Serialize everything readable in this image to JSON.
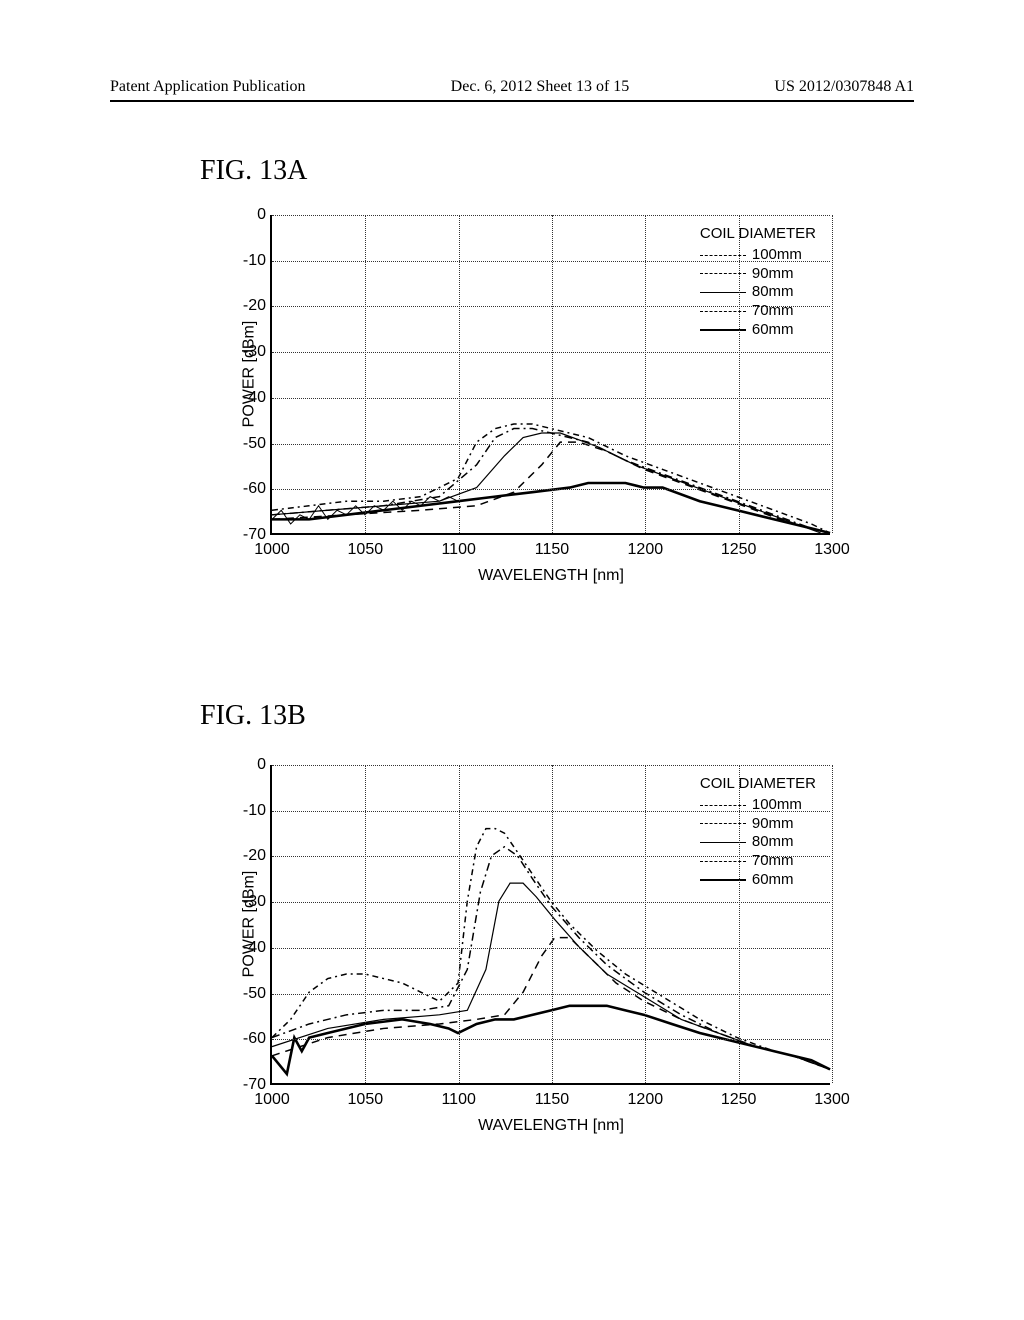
{
  "header": {
    "left": "Patent Application Publication",
    "center": "Dec. 6, 2012   Sheet 13 of 15",
    "right": "US 2012/0307848 A1"
  },
  "label_a": "FIG. 13A",
  "label_b": "FIG. 13B",
  "chart": {
    "type": "line",
    "xlabel": "WAVELENGTH [nm]",
    "ylabel": "POWER [dBm]",
    "xlim": [
      1000,
      1300
    ],
    "ylim": [
      -70,
      0
    ],
    "xticks": [
      1000,
      1050,
      1100,
      1150,
      1200,
      1250,
      1300
    ],
    "yticks": [
      0,
      -10,
      -20,
      -30,
      -40,
      -50,
      -60,
      -70
    ],
    "grid_color": "#333333",
    "axis_color": "#000000",
    "background_color": "#ffffff",
    "legend_title": "COIL DIAMETER",
    "legend": [
      {
        "label": "100mm",
        "dash": "6 4 2 4",
        "weight": 1.5
      },
      {
        "label": "90mm",
        "dash": "8 4 2 4",
        "weight": 1.5
      },
      {
        "label": "80mm",
        "dash": "none",
        "weight": 1.2
      },
      {
        "label": "70mm",
        "dash": "8 6",
        "weight": 1.5
      },
      {
        "label": "60mm",
        "dash": "none",
        "weight": 2.6
      }
    ],
    "label_fontsize": 16,
    "tick_fontsize": 16,
    "legend_fontsize": 15,
    "series_a": {
      "s100": [
        [
          1000,
          -65
        ],
        [
          1020,
          -64
        ],
        [
          1040,
          -63
        ],
        [
          1060,
          -63
        ],
        [
          1080,
          -62
        ],
        [
          1100,
          -58
        ],
        [
          1110,
          -50
        ],
        [
          1120,
          -47
        ],
        [
          1130,
          -46
        ],
        [
          1140,
          -46
        ],
        [
          1150,
          -47
        ],
        [
          1170,
          -49
        ],
        [
          1190,
          -53
        ],
        [
          1210,
          -56
        ],
        [
          1230,
          -59
        ],
        [
          1250,
          -62
        ],
        [
          1270,
          -65
        ],
        [
          1290,
          -68
        ],
        [
          1300,
          -70
        ]
      ],
      "s90": [
        [
          1000,
          -66
        ],
        [
          1030,
          -65
        ],
        [
          1060,
          -64
        ],
        [
          1090,
          -62
        ],
        [
          1110,
          -55
        ],
        [
          1120,
          -49
        ],
        [
          1130,
          -47
        ],
        [
          1140,
          -47
        ],
        [
          1150,
          -48
        ],
        [
          1170,
          -50
        ],
        [
          1190,
          -54
        ],
        [
          1210,
          -57
        ],
        [
          1230,
          -60
        ],
        [
          1250,
          -63
        ],
        [
          1270,
          -66
        ],
        [
          1290,
          -69
        ],
        [
          1300,
          -70
        ]
      ],
      "s80": [
        [
          1000,
          -66
        ],
        [
          1030,
          -65
        ],
        [
          1060,
          -64
        ],
        [
          1090,
          -63
        ],
        [
          1110,
          -60
        ],
        [
          1125,
          -53
        ],
        [
          1135,
          -49
        ],
        [
          1145,
          -48
        ],
        [
          1155,
          -48
        ],
        [
          1175,
          -51
        ],
        [
          1195,
          -55
        ],
        [
          1215,
          -58
        ],
        [
          1235,
          -61
        ],
        [
          1255,
          -64
        ],
        [
          1275,
          -67
        ],
        [
          1295,
          -70
        ]
      ],
      "s70": [
        [
          1000,
          -67
        ],
        [
          1040,
          -66
        ],
        [
          1080,
          -65
        ],
        [
          1110,
          -64
        ],
        [
          1130,
          -61
        ],
        [
          1145,
          -55
        ],
        [
          1155,
          -50
        ],
        [
          1165,
          -50
        ],
        [
          1180,
          -52
        ],
        [
          1200,
          -56
        ],
        [
          1220,
          -59
        ],
        [
          1240,
          -62
        ],
        [
          1260,
          -65
        ],
        [
          1280,
          -68
        ],
        [
          1300,
          -70
        ]
      ],
      "s60": [
        [
          1000,
          -67
        ],
        [
          1020,
          -67
        ],
        [
          1040,
          -66
        ],
        [
          1060,
          -65
        ],
        [
          1080,
          -64
        ],
        [
          1100,
          -63
        ],
        [
          1120,
          -62
        ],
        [
          1140,
          -61
        ],
        [
          1160,
          -60
        ],
        [
          1170,
          -59
        ],
        [
          1180,
          -59
        ],
        [
          1190,
          -59
        ],
        [
          1200,
          -60
        ],
        [
          1210,
          -60
        ],
        [
          1230,
          -63
        ],
        [
          1250,
          -65
        ],
        [
          1270,
          -67
        ],
        [
          1290,
          -69
        ],
        [
          1300,
          -70
        ]
      ],
      "noise": [
        [
          1000,
          -67
        ],
        [
          1005,
          -65
        ],
        [
          1010,
          -68
        ],
        [
          1015,
          -66
        ],
        [
          1020,
          -67
        ],
        [
          1025,
          -64
        ],
        [
          1030,
          -67
        ],
        [
          1035,
          -65
        ],
        [
          1040,
          -66
        ],
        [
          1045,
          -64
        ],
        [
          1050,
          -66
        ],
        [
          1055,
          -64
        ],
        [
          1060,
          -65
        ],
        [
          1065,
          -63
        ],
        [
          1070,
          -65
        ],
        [
          1075,
          -63
        ],
        [
          1080,
          -64
        ],
        [
          1085,
          -62
        ],
        [
          1090,
          -63
        ],
        [
          1095,
          -62
        ],
        [
          1100,
          -63
        ]
      ]
    },
    "series_b": {
      "s100": [
        [
          1000,
          -60
        ],
        [
          1010,
          -56
        ],
        [
          1020,
          -50
        ],
        [
          1030,
          -47
        ],
        [
          1040,
          -46
        ],
        [
          1050,
          -46
        ],
        [
          1060,
          -47
        ],
        [
          1070,
          -48
        ],
        [
          1080,
          -50
        ],
        [
          1090,
          -52
        ],
        [
          1100,
          -48
        ],
        [
          1105,
          -30
        ],
        [
          1110,
          -18
        ],
        [
          1115,
          -14
        ],
        [
          1120,
          -14
        ],
        [
          1125,
          -15
        ],
        [
          1130,
          -18
        ],
        [
          1140,
          -24
        ],
        [
          1150,
          -30
        ],
        [
          1160,
          -35
        ],
        [
          1175,
          -41
        ],
        [
          1190,
          -46
        ],
        [
          1210,
          -51
        ],
        [
          1230,
          -56
        ],
        [
          1250,
          -60
        ],
        [
          1270,
          -63
        ],
        [
          1290,
          -65
        ],
        [
          1300,
          -67
        ]
      ],
      "s90": [
        [
          1000,
          -60
        ],
        [
          1020,
          -57
        ],
        [
          1040,
          -55
        ],
        [
          1060,
          -54
        ],
        [
          1080,
          -54
        ],
        [
          1095,
          -53
        ],
        [
          1105,
          -45
        ],
        [
          1112,
          -28
        ],
        [
          1118,
          -20
        ],
        [
          1125,
          -18
        ],
        [
          1132,
          -20
        ],
        [
          1140,
          -25
        ],
        [
          1150,
          -31
        ],
        [
          1165,
          -38
        ],
        [
          1180,
          -44
        ],
        [
          1200,
          -50
        ],
        [
          1220,
          -55
        ],
        [
          1240,
          -59
        ],
        [
          1260,
          -62
        ],
        [
          1280,
          -64
        ],
        [
          1300,
          -67
        ]
      ],
      "s80": [
        [
          1000,
          -62
        ],
        [
          1030,
          -58
        ],
        [
          1060,
          -56
        ],
        [
          1090,
          -55
        ],
        [
          1105,
          -54
        ],
        [
          1115,
          -45
        ],
        [
          1122,
          -30
        ],
        [
          1128,
          -26
        ],
        [
          1135,
          -26
        ],
        [
          1142,
          -29
        ],
        [
          1152,
          -34
        ],
        [
          1165,
          -40
        ],
        [
          1180,
          -46
        ],
        [
          1200,
          -51
        ],
        [
          1220,
          -56
        ],
        [
          1240,
          -59
        ],
        [
          1260,
          -62
        ],
        [
          1280,
          -64
        ],
        [
          1300,
          -67
        ]
      ],
      "s70": [
        [
          1000,
          -64
        ],
        [
          1030,
          -60
        ],
        [
          1060,
          -58
        ],
        [
          1090,
          -57
        ],
        [
          1110,
          -56
        ],
        [
          1125,
          -55
        ],
        [
          1135,
          -50
        ],
        [
          1145,
          -42
        ],
        [
          1152,
          -38
        ],
        [
          1160,
          -38
        ],
        [
          1170,
          -42
        ],
        [
          1185,
          -48
        ],
        [
          1200,
          -52
        ],
        [
          1220,
          -56
        ],
        [
          1240,
          -59
        ],
        [
          1260,
          -62
        ],
        [
          1280,
          -64
        ],
        [
          1300,
          -67
        ]
      ],
      "s60": [
        [
          1000,
          -64
        ],
        [
          1008,
          -68
        ],
        [
          1012,
          -60
        ],
        [
          1016,
          -63
        ],
        [
          1020,
          -60
        ],
        [
          1030,
          -59
        ],
        [
          1050,
          -57
        ],
        [
          1070,
          -56
        ],
        [
          1085,
          -57
        ],
        [
          1095,
          -58
        ],
        [
          1100,
          -59
        ],
        [
          1110,
          -57
        ],
        [
          1120,
          -56
        ],
        [
          1130,
          -56
        ],
        [
          1140,
          -55
        ],
        [
          1150,
          -54
        ],
        [
          1160,
          -53
        ],
        [
          1170,
          -53
        ],
        [
          1180,
          -53
        ],
        [
          1190,
          -54
        ],
        [
          1200,
          -55
        ],
        [
          1215,
          -57
        ],
        [
          1230,
          -59
        ],
        [
          1250,
          -61
        ],
        [
          1270,
          -63
        ],
        [
          1290,
          -65
        ],
        [
          1300,
          -67
        ]
      ]
    }
  }
}
